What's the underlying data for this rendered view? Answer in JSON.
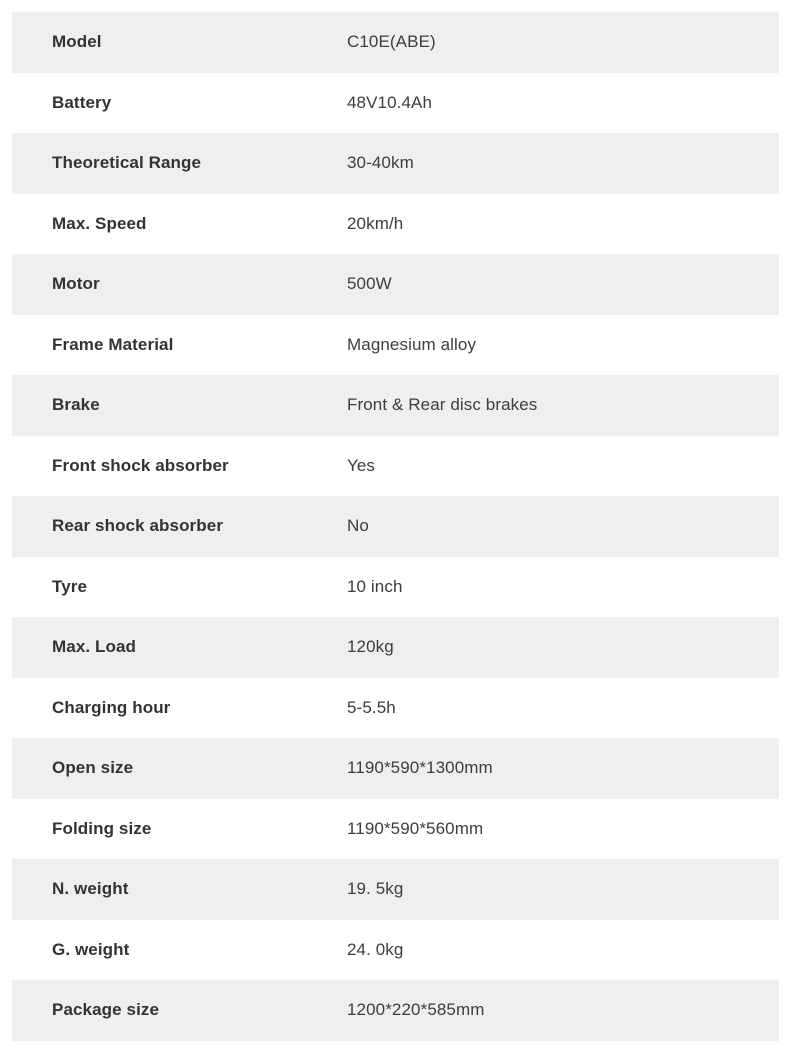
{
  "table": {
    "name": "product-specifications",
    "colors": {
      "alt_row_bg": "#efefef",
      "row_bg": "#ffffff",
      "label_text": "#333333",
      "value_text": "#3d3d3d"
    },
    "rows": [
      {
        "label": "Model",
        "value": "C10E(ABE)"
      },
      {
        "label": "Battery",
        "value": "48V10.4Ah"
      },
      {
        "label": "Theoretical Range",
        "value": "30-40km"
      },
      {
        "label": "Max. Speed",
        "value": "20km/h"
      },
      {
        "label": "Motor",
        "value": "500W"
      },
      {
        "label": "Frame Material",
        "value": "Magnesium alloy"
      },
      {
        "label": "Brake",
        "value": "Front & Rear disc brakes"
      },
      {
        "label": "Front shock absorber",
        "value": "Yes"
      },
      {
        "label": "Rear shock absorber",
        "value": "No"
      },
      {
        "label": "Tyre",
        "value": "10 inch"
      },
      {
        "label": "Max. Load",
        "value": "120kg"
      },
      {
        "label": "Charging hour",
        "value": "5-5.5h"
      },
      {
        "label": "Open size",
        "value": "1190*590*1300mm"
      },
      {
        "label": "Folding size",
        "value": "1190*590*560mm"
      },
      {
        "label": "N. weight",
        "value": "19. 5kg"
      },
      {
        "label": "G. weight",
        "value": "24. 0kg"
      },
      {
        "label": "Package size",
        "value": "1200*220*585mm"
      }
    ]
  }
}
